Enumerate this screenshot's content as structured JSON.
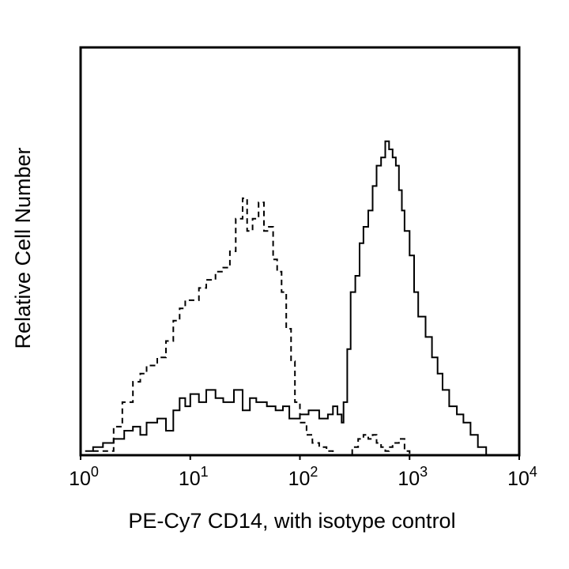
{
  "chart_data": {
    "type": "line",
    "title": "",
    "xlabel": "PE-Cy7 CD14, with isotype control",
    "ylabel": "Relative Cell Number",
    "x_scale": "log",
    "xlim": [
      1,
      10000
    ],
    "ylim": [
      0,
      100
    ],
    "grid": false,
    "x_ticks": [
      {
        "base": "10",
        "exp": "0"
      },
      {
        "base": "10",
        "exp": "1"
      },
      {
        "base": "10",
        "exp": "2"
      },
      {
        "base": "10",
        "exp": "3"
      },
      {
        "base": "10",
        "exp": "4"
      }
    ],
    "series": [
      {
        "style": "dashed",
        "color": "#000000",
        "x": [
          1.3,
          1.6,
          2.0,
          2.4,
          3.0,
          3.5,
          4.0,
          5.0,
          6.0,
          7.0,
          8.0,
          9.0,
          10,
          12,
          14,
          17,
          20,
          23,
          26,
          30,
          33,
          37,
          42,
          47,
          52,
          57,
          62,
          68,
          75,
          83,
          90,
          100,
          115,
          130,
          150,
          175,
          200,
          230,
          260,
          300,
          340,
          380,
          420,
          460,
          500,
          550,
          600,
          650,
          700,
          800,
          900,
          1000,
          1200,
          1400
        ],
        "y": [
          1,
          1,
          7,
          13,
          18,
          20,
          22,
          24,
          28,
          33,
          36,
          38,
          38,
          41,
          43,
          45,
          46,
          50,
          58,
          63,
          55,
          58,
          62,
          55,
          56,
          48,
          45,
          40,
          31,
          23,
          13,
          8,
          5,
          3,
          2,
          1,
          0,
          0,
          0,
          2,
          4,
          5,
          4,
          5,
          3,
          2,
          1,
          2,
          3,
          4,
          1,
          0,
          0,
          0
        ]
      },
      {
        "style": "solid",
        "color": "#000000",
        "x": [
          1.1,
          1.3,
          1.6,
          2.0,
          2.5,
          3.0,
          3.5,
          4.0,
          5.0,
          6.0,
          7.0,
          8.0,
          9.0,
          10,
          12,
          14,
          17,
          20,
          25,
          30,
          35,
          40,
          50,
          60,
          70,
          80,
          100,
          120,
          150,
          180,
          200,
          220,
          240,
          250,
          270,
          290,
          320,
          350,
          380,
          420,
          460,
          500,
          550,
          600,
          650,
          700,
          750,
          800,
          850,
          900,
          1000,
          1100,
          1200,
          1400,
          1600,
          1800,
          2000,
          2300,
          2700,
          3100,
          3600,
          4200,
          5000
        ],
        "y": [
          1,
          2,
          3,
          4,
          6,
          7,
          5,
          8,
          9,
          6,
          11,
          14,
          12,
          15,
          13,
          16,
          14,
          13,
          16,
          11,
          14,
          13,
          12,
          11,
          12,
          9,
          10,
          11,
          9,
          10,
          12,
          10,
          8,
          13,
          26,
          40,
          44,
          52,
          56,
          60,
          66,
          71,
          73,
          77,
          75,
          73,
          71,
          65,
          60,
          55,
          49,
          40,
          34,
          29,
          24,
          20,
          16,
          12,
          10,
          8,
          5,
          2,
          0
        ]
      }
    ]
  }
}
